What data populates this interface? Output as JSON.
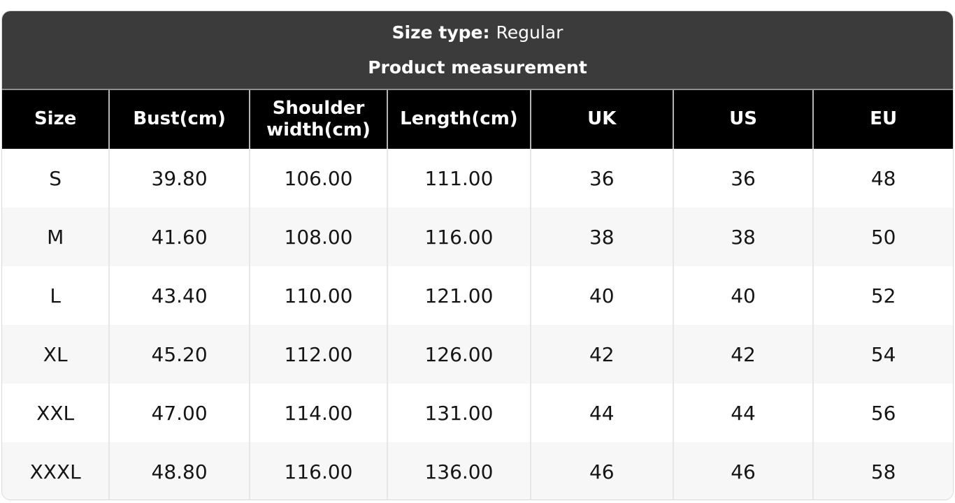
{
  "title_band": {
    "size_type_label": "Size type:",
    "size_type_value": "Regular",
    "subtitle": "Product measurement"
  },
  "colors": {
    "band_background": "#3b3b3b",
    "header_background": "#000000",
    "header_text": "#ffffff",
    "alt_row_background": "#f7f7f7",
    "body_text": "#151515",
    "separator": "#e7e7e7"
  },
  "chart_data": {
    "type": "table",
    "title": "Product measurement",
    "size_type": "Regular",
    "columns": [
      "Size",
      "Bust(cm)",
      "Shoulder width(cm)",
      "Length(cm)",
      "UK",
      "US",
      "EU"
    ],
    "rows": [
      [
        "S",
        "39.80",
        "106.00",
        "111.00",
        "36",
        "36",
        "48"
      ],
      [
        "M",
        "41.60",
        "108.00",
        "116.00",
        "38",
        "38",
        "50"
      ],
      [
        "L",
        "43.40",
        "110.00",
        "121.00",
        "40",
        "40",
        "52"
      ],
      [
        "XL",
        "45.20",
        "112.00",
        "126.00",
        "42",
        "42",
        "54"
      ],
      [
        "XXL",
        "47.00",
        "114.00",
        "131.00",
        "44",
        "44",
        "56"
      ],
      [
        "XXXL",
        "48.80",
        "116.00",
        "136.00",
        "46",
        "46",
        "58"
      ]
    ]
  }
}
